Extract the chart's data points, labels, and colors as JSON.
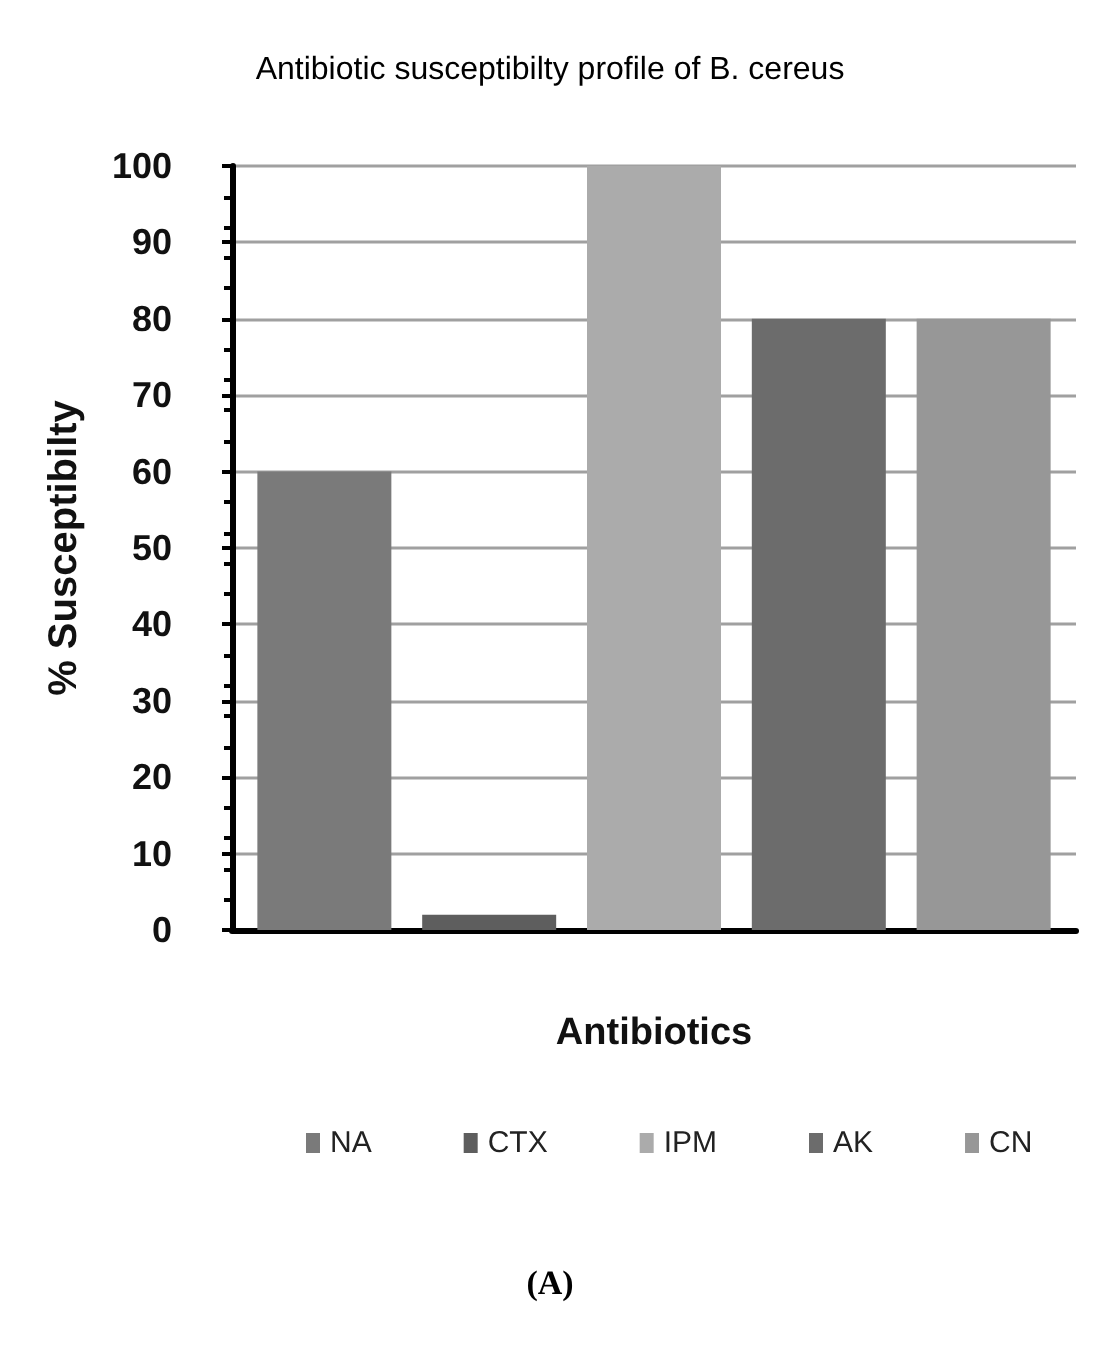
{
  "chart_data": {
    "type": "bar",
    "title": "Antibiotic susceptibilty profile of B. cereus",
    "xlabel": "Antibiotics",
    "ylabel": "% Susceptibilty",
    "categories": [
      null
    ],
    "series": [
      {
        "name": "NA",
        "color": "#7a7a7a",
        "values": [
          60
        ]
      },
      {
        "name": "CTX",
        "color": "#5e5e5e",
        "values": [
          2
        ]
      },
      {
        "name": "IPM",
        "color": "#ababab",
        "values": [
          100
        ]
      },
      {
        "name": "AK",
        "color": "#6c6c6c",
        "values": [
          80
        ]
      },
      {
        "name": "CN",
        "color": "#979797",
        "values": [
          80
        ]
      }
    ],
    "ylim": [
      0,
      100
    ],
    "yticks": [
      0,
      10,
      20,
      30,
      40,
      50,
      60,
      70,
      80,
      90,
      100
    ],
    "grid": "y",
    "legend": "bottom",
    "annotations": [
      "(A)"
    ]
  }
}
